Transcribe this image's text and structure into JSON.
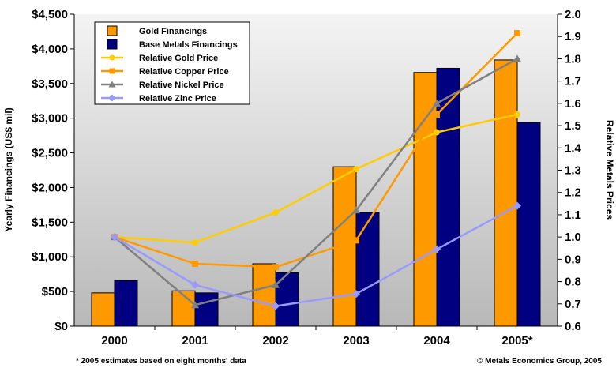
{
  "chart_data": {
    "type": "bar",
    "categories": [
      "2000",
      "2001",
      "2002",
      "2003",
      "2004",
      "2005*"
    ],
    "ylabel_left": "Yearly Financings (US$ mil)",
    "ylabel_right": "Relative Metals  Prices",
    "ylim_left": [
      0,
      4500
    ],
    "ylim_right": [
      0.6,
      2.0
    ],
    "yticks_left": [
      "$0",
      "$500",
      "$1,000",
      "$1,500",
      "$2,000",
      "$2,500",
      "$3,000",
      "$3,500",
      "$4,000",
      "$4,500"
    ],
    "yticks_right": [
      "0.6",
      "0.7",
      "0.8",
      "0.9",
      "1.0",
      "1.1",
      "1.2",
      "1.3",
      "1.4",
      "1.5",
      "1.6",
      "1.7",
      "1.8",
      "1.9",
      "2.0"
    ],
    "bar_series": [
      {
        "name": "Gold Financings",
        "color": "#FF9900",
        "values": [
          480,
          510,
          900,
          2300,
          3660,
          3840
        ]
      },
      {
        "name": "Base Metals Financings",
        "color": "#000080",
        "values": [
          660,
          480,
          770,
          1640,
          3720,
          2940
        ]
      }
    ],
    "line_series": [
      {
        "name": "Relative Gold Price",
        "color": "#FFCC00",
        "marker": "circle",
        "values": [
          1.0,
          0.975,
          1.11,
          1.305,
          1.47,
          1.55
        ]
      },
      {
        "name": "Relative Copper Price",
        "color": "#FF9900",
        "marker": "square",
        "values": [
          1.0,
          0.88,
          0.865,
          0.985,
          1.55,
          1.915
        ]
      },
      {
        "name": "Relative Nickel Price",
        "color": "#808080",
        "marker": "triangle",
        "values": [
          1.0,
          0.695,
          0.785,
          1.12,
          1.6,
          1.8
        ]
      },
      {
        "name": "Relative Zinc Price",
        "color": "#9999FF",
        "marker": "diamond",
        "values": [
          1.0,
          0.785,
          0.69,
          0.745,
          0.945,
          1.14
        ]
      }
    ],
    "legend_position": "top-left",
    "plot_background": "#C0C0C0",
    "grid": false
  },
  "footnote": "* 2005 estimates based on eight months' data",
  "copyright": "© Metals Economics Group, 2005"
}
